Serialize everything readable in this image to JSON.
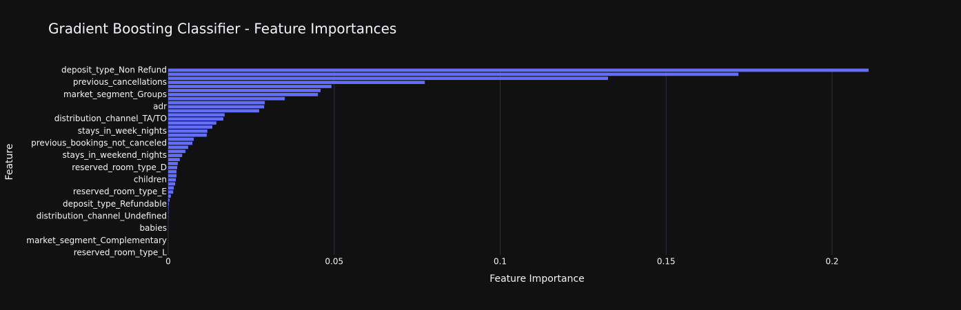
{
  "chart_data": {
    "type": "bar",
    "orientation": "horizontal",
    "title": "Gradient Boosting Classifier - Feature Importances",
    "x_label": "Feature Importance",
    "y_label": "Feature",
    "categories": [
      "deposit_type_Non Refund",
      null,
      null,
      "previous_cancellations",
      null,
      null,
      "market_segment_Groups",
      null,
      null,
      "adr",
      null,
      null,
      "distribution_channel_TA/TO",
      null,
      null,
      "stays_in_week_nights",
      null,
      null,
      "previous_bookings_not_canceled",
      null,
      null,
      "stays_in_weekend_nights",
      null,
      null,
      "reserved_room_type_D",
      null,
      null,
      "children",
      null,
      null,
      "reserved_room_type_E",
      null,
      null,
      "deposit_type_Refundable",
      null,
      null,
      "distribution_channel_Undefined",
      null,
      null,
      "babies",
      null,
      null,
      "market_segment_Complementary",
      null,
      null,
      "reserved_room_type_L"
    ],
    "values": [
      0.211,
      0.1718,
      0.1325,
      0.0773,
      0.0492,
      0.0459,
      0.0451,
      0.0351,
      0.0291,
      0.0289,
      0.0274,
      0.017,
      0.0166,
      0.0145,
      0.0133,
      0.0118,
      0.0116,
      0.0077,
      0.0073,
      0.006,
      0.0052,
      0.0042,
      0.0035,
      0.0029,
      0.0027,
      0.0025,
      0.0025,
      0.0023,
      0.0021,
      0.0017,
      0.0015,
      0.0008,
      0.0004,
      0.0002,
      0.0001,
      0.0001,
      5e-05,
      0,
      0,
      0,
      0,
      0,
      0,
      0,
      0,
      0
    ],
    "color": "#636efa",
    "xlim": [
      0,
      0.2216
    ],
    "xticks": [
      0,
      0.05,
      0.1,
      0.15,
      0.2
    ],
    "grid": true
  }
}
